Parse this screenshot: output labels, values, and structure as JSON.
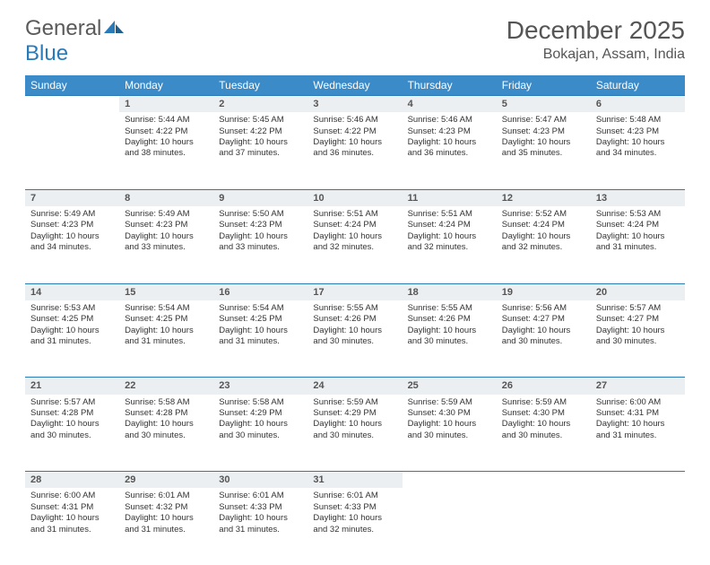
{
  "logo": {
    "text1": "General",
    "text2": "Blue"
  },
  "title": "December 2025",
  "location": "Bokajan, Assam, India",
  "header_bg": "#3b8bc9",
  "rule_color": "#2a7ab8",
  "daynum_bg": "#eceff1",
  "weekdays": [
    "Sunday",
    "Monday",
    "Tuesday",
    "Wednesday",
    "Thursday",
    "Friday",
    "Saturday"
  ],
  "weeks": [
    [
      null,
      {
        "n": "1",
        "sr": "Sunrise: 5:44 AM",
        "ss": "Sunset: 4:22 PM",
        "d1": "Daylight: 10 hours",
        "d2": "and 38 minutes."
      },
      {
        "n": "2",
        "sr": "Sunrise: 5:45 AM",
        "ss": "Sunset: 4:22 PM",
        "d1": "Daylight: 10 hours",
        "d2": "and 37 minutes."
      },
      {
        "n": "3",
        "sr": "Sunrise: 5:46 AM",
        "ss": "Sunset: 4:22 PM",
        "d1": "Daylight: 10 hours",
        "d2": "and 36 minutes."
      },
      {
        "n": "4",
        "sr": "Sunrise: 5:46 AM",
        "ss": "Sunset: 4:23 PM",
        "d1": "Daylight: 10 hours",
        "d2": "and 36 minutes."
      },
      {
        "n": "5",
        "sr": "Sunrise: 5:47 AM",
        "ss": "Sunset: 4:23 PM",
        "d1": "Daylight: 10 hours",
        "d2": "and 35 minutes."
      },
      {
        "n": "6",
        "sr": "Sunrise: 5:48 AM",
        "ss": "Sunset: 4:23 PM",
        "d1": "Daylight: 10 hours",
        "d2": "and 34 minutes."
      }
    ],
    [
      {
        "n": "7",
        "sr": "Sunrise: 5:49 AM",
        "ss": "Sunset: 4:23 PM",
        "d1": "Daylight: 10 hours",
        "d2": "and 34 minutes."
      },
      {
        "n": "8",
        "sr": "Sunrise: 5:49 AM",
        "ss": "Sunset: 4:23 PM",
        "d1": "Daylight: 10 hours",
        "d2": "and 33 minutes."
      },
      {
        "n": "9",
        "sr": "Sunrise: 5:50 AM",
        "ss": "Sunset: 4:23 PM",
        "d1": "Daylight: 10 hours",
        "d2": "and 33 minutes."
      },
      {
        "n": "10",
        "sr": "Sunrise: 5:51 AM",
        "ss": "Sunset: 4:24 PM",
        "d1": "Daylight: 10 hours",
        "d2": "and 32 minutes."
      },
      {
        "n": "11",
        "sr": "Sunrise: 5:51 AM",
        "ss": "Sunset: 4:24 PM",
        "d1": "Daylight: 10 hours",
        "d2": "and 32 minutes."
      },
      {
        "n": "12",
        "sr": "Sunrise: 5:52 AM",
        "ss": "Sunset: 4:24 PM",
        "d1": "Daylight: 10 hours",
        "d2": "and 32 minutes."
      },
      {
        "n": "13",
        "sr": "Sunrise: 5:53 AM",
        "ss": "Sunset: 4:24 PM",
        "d1": "Daylight: 10 hours",
        "d2": "and 31 minutes."
      }
    ],
    [
      {
        "n": "14",
        "sr": "Sunrise: 5:53 AM",
        "ss": "Sunset: 4:25 PM",
        "d1": "Daylight: 10 hours",
        "d2": "and 31 minutes."
      },
      {
        "n": "15",
        "sr": "Sunrise: 5:54 AM",
        "ss": "Sunset: 4:25 PM",
        "d1": "Daylight: 10 hours",
        "d2": "and 31 minutes."
      },
      {
        "n": "16",
        "sr": "Sunrise: 5:54 AM",
        "ss": "Sunset: 4:25 PM",
        "d1": "Daylight: 10 hours",
        "d2": "and 31 minutes."
      },
      {
        "n": "17",
        "sr": "Sunrise: 5:55 AM",
        "ss": "Sunset: 4:26 PM",
        "d1": "Daylight: 10 hours",
        "d2": "and 30 minutes."
      },
      {
        "n": "18",
        "sr": "Sunrise: 5:55 AM",
        "ss": "Sunset: 4:26 PM",
        "d1": "Daylight: 10 hours",
        "d2": "and 30 minutes."
      },
      {
        "n": "19",
        "sr": "Sunrise: 5:56 AM",
        "ss": "Sunset: 4:27 PM",
        "d1": "Daylight: 10 hours",
        "d2": "and 30 minutes."
      },
      {
        "n": "20",
        "sr": "Sunrise: 5:57 AM",
        "ss": "Sunset: 4:27 PM",
        "d1": "Daylight: 10 hours",
        "d2": "and 30 minutes."
      }
    ],
    [
      {
        "n": "21",
        "sr": "Sunrise: 5:57 AM",
        "ss": "Sunset: 4:28 PM",
        "d1": "Daylight: 10 hours",
        "d2": "and 30 minutes."
      },
      {
        "n": "22",
        "sr": "Sunrise: 5:58 AM",
        "ss": "Sunset: 4:28 PM",
        "d1": "Daylight: 10 hours",
        "d2": "and 30 minutes."
      },
      {
        "n": "23",
        "sr": "Sunrise: 5:58 AM",
        "ss": "Sunset: 4:29 PM",
        "d1": "Daylight: 10 hours",
        "d2": "and 30 minutes."
      },
      {
        "n": "24",
        "sr": "Sunrise: 5:59 AM",
        "ss": "Sunset: 4:29 PM",
        "d1": "Daylight: 10 hours",
        "d2": "and 30 minutes."
      },
      {
        "n": "25",
        "sr": "Sunrise: 5:59 AM",
        "ss": "Sunset: 4:30 PM",
        "d1": "Daylight: 10 hours",
        "d2": "and 30 minutes."
      },
      {
        "n": "26",
        "sr": "Sunrise: 5:59 AM",
        "ss": "Sunset: 4:30 PM",
        "d1": "Daylight: 10 hours",
        "d2": "and 30 minutes."
      },
      {
        "n": "27",
        "sr": "Sunrise: 6:00 AM",
        "ss": "Sunset: 4:31 PM",
        "d1": "Daylight: 10 hours",
        "d2": "and 31 minutes."
      }
    ],
    [
      {
        "n": "28",
        "sr": "Sunrise: 6:00 AM",
        "ss": "Sunset: 4:31 PM",
        "d1": "Daylight: 10 hours",
        "d2": "and 31 minutes."
      },
      {
        "n": "29",
        "sr": "Sunrise: 6:01 AM",
        "ss": "Sunset: 4:32 PM",
        "d1": "Daylight: 10 hours",
        "d2": "and 31 minutes."
      },
      {
        "n": "30",
        "sr": "Sunrise: 6:01 AM",
        "ss": "Sunset: 4:33 PM",
        "d1": "Daylight: 10 hours",
        "d2": "and 31 minutes."
      },
      {
        "n": "31",
        "sr": "Sunrise: 6:01 AM",
        "ss": "Sunset: 4:33 PM",
        "d1": "Daylight: 10 hours",
        "d2": "and 32 minutes."
      },
      null,
      null,
      null
    ]
  ]
}
